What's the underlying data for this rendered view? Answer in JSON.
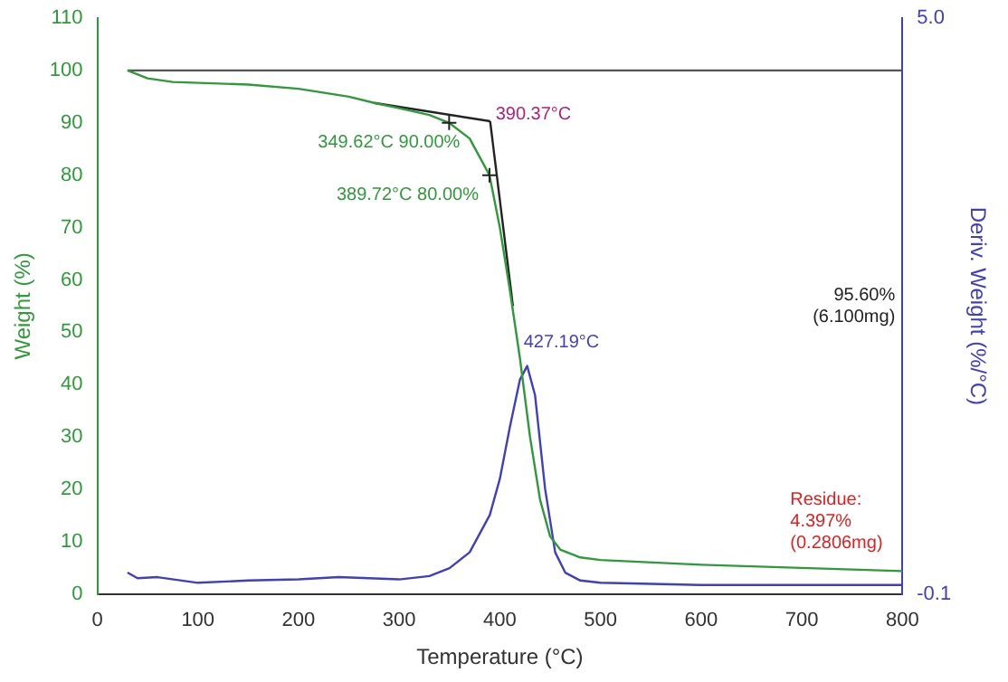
{
  "chart_data": {
    "type": "line",
    "xlabel": "Temperature (°C)",
    "ylabel": "Weight (%)",
    "y2label": "Deriv. Weight (%/°C)",
    "xlim": [
      0,
      800
    ],
    "xticks": [
      0,
      100,
      200,
      300,
      400,
      500,
      600,
      700,
      800
    ],
    "ylim": [
      0,
      110
    ],
    "yticks": [
      0,
      10,
      20,
      30,
      40,
      50,
      60,
      70,
      80,
      90,
      100,
      110
    ],
    "y2lim": [
      -0.1,
      5
    ],
    "y2ticks": [
      -0.1,
      {
        "value": 5,
        "label": "5.0"
      }
    ],
    "grid": false,
    "legend": false,
    "marker": "none",
    "line_style": "solid",
    "series": [
      {
        "color": "#2e9a3a",
        "x": [
          30,
          50,
          75,
          150,
          200,
          250,
          275,
          300,
          330,
          349.62,
          370,
          389.72,
          400,
          410,
          420,
          430,
          440,
          450,
          460,
          480,
          500,
          600,
          700,
          800
        ],
        "values": [
          100,
          98.5,
          97.8,
          97.3,
          96.5,
          95,
          93.8,
          92.8,
          91.5,
          90,
          87,
          80,
          70,
          58,
          45,
          30,
          18,
          11,
          8.5,
          7,
          6.5,
          5.6,
          5,
          4.4
        ]
      },
      {
        "color": "#3f3fc0",
        "axis": "y2",
        "x": [
          30,
          40,
          60,
          100,
          150,
          200,
          240,
          300,
          330,
          350,
          370,
          390,
          400,
          410,
          420,
          427.19,
          435,
          445,
          455,
          465,
          480,
          500,
          600,
          700,
          800
        ],
        "values": [
          0.09,
          0.04,
          0.05,
          0,
          0.02,
          0.03,
          0.05,
          0.03,
          0.06,
          0.13,
          0.27,
          0.6,
          0.92,
          1.38,
          1.8,
          1.92,
          1.66,
          0.83,
          0.27,
          0.09,
          0.02,
          0,
          -0.02,
          -0.02,
          -0.02
        ]
      },
      {
        "color": "#222222",
        "x": [
          275,
          390.37
        ],
        "values": [
          93.8,
          90.3
        ]
      },
      {
        "color": "#222222",
        "x": [
          390.37,
          413
        ],
        "values": [
          90.3,
          55
        ]
      },
      {
        "color": "#555555",
        "x": [
          30,
          800
        ],
        "values": [
          100,
          100
        ]
      }
    ],
    "annotations": [
      {
        "text": "349.62°C 90.00%",
        "x": 349.62,
        "y": 90
      },
      {
        "text": "389.72°C 80.00%",
        "x": 389.72,
        "y": 80
      },
      {
        "text": "390.37°C",
        "x": 390.37,
        "y": 90.3
      },
      {
        "text": "427.19°C",
        "x": 427.19,
        "y": 44
      },
      "95.60%\n(6.100mg)",
      "Residue:\n4.397%\n(0.2806mg)"
    ]
  }
}
